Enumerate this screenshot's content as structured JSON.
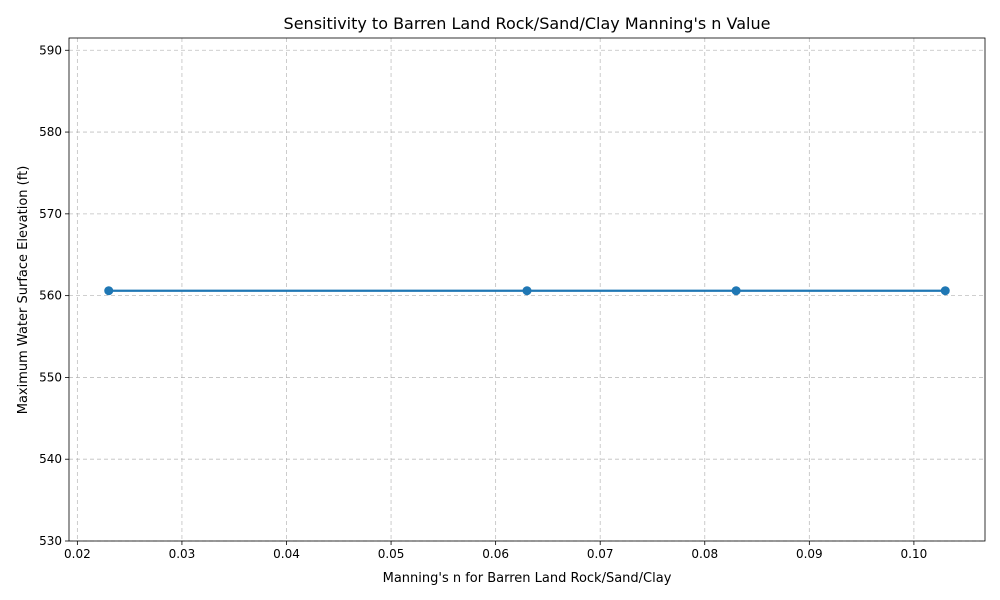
{
  "chart_data": {
    "type": "line",
    "title": "Sensitivity to Barren Land Rock/Sand/Clay Manning's n Value",
    "xlabel": "Manning's n for Barren Land Rock/Sand/Clay",
    "ylabel": "Maximum Water Surface Elevation (ft)",
    "x": [
      0.023,
      0.063,
      0.083,
      0.103
    ],
    "series": [
      {
        "values": [
          560.6,
          560.6,
          560.6,
          560.6
        ],
        "color": "#1f77b4"
      }
    ],
    "xlim": [
      0.0192,
      0.1068
    ],
    "ylim": [
      530,
      591.5
    ],
    "xticks": [
      0.02,
      0.03,
      0.04,
      0.05,
      0.06,
      0.07,
      0.08,
      0.09,
      0.1
    ],
    "xtick_labels": [
      "0.02",
      "0.03",
      "0.04",
      "0.05",
      "0.06",
      "0.07",
      "0.08",
      "0.09",
      "0.10"
    ],
    "yticks": [
      530,
      540,
      550,
      560,
      570,
      580,
      590
    ],
    "ytick_labels": [
      "530",
      "540",
      "550",
      "560",
      "570",
      "580",
      "590"
    ],
    "grid": true,
    "marker": "circle"
  }
}
